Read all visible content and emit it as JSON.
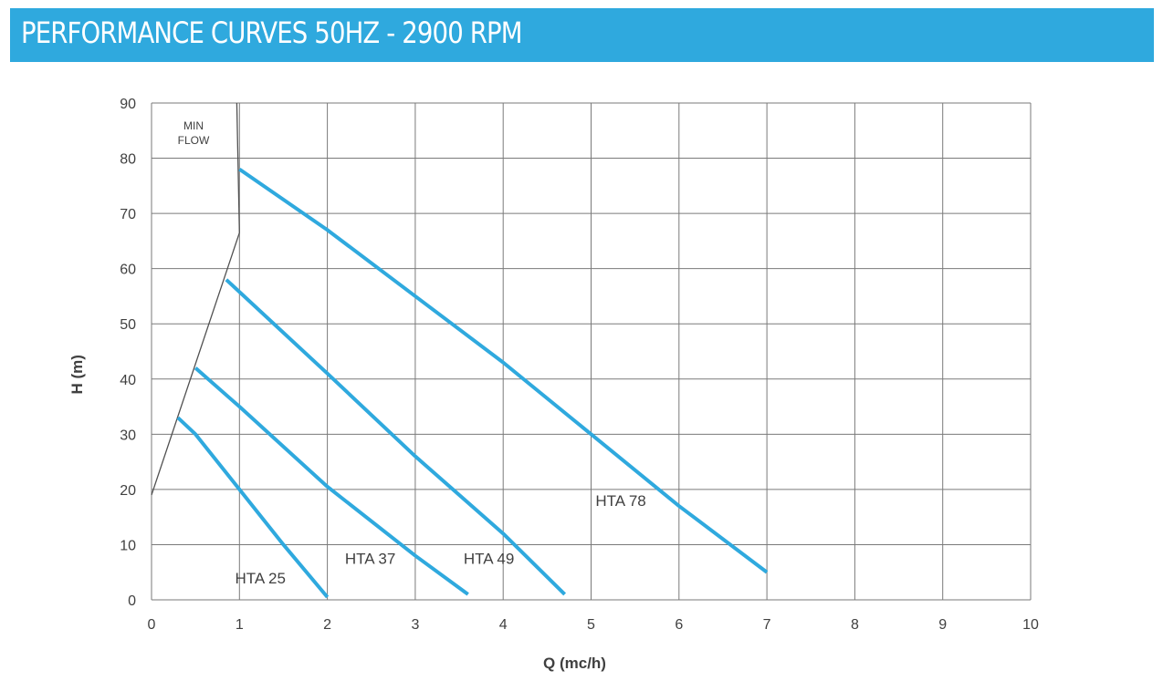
{
  "header": {
    "title": "PERFORMANCE CURVES 50HZ - 2900 RPM",
    "background": "#2fa9de"
  },
  "chart_data": {
    "type": "line",
    "title": "PERFORMANCE CURVES 50HZ - 2900 RPM",
    "xlabel": "Q (mc/h)",
    "ylabel": "H (m)",
    "xlim": [
      0,
      10
    ],
    "ylim": [
      0,
      90
    ],
    "x_ticks": [
      0,
      1,
      2,
      3,
      4,
      5,
      6,
      7,
      8,
      9,
      10
    ],
    "y_ticks": [
      0,
      10,
      20,
      30,
      40,
      50,
      60,
      70,
      80,
      90
    ],
    "grid": true,
    "legend": "none",
    "series_color": "#2fa9de",
    "series": [
      {
        "name": "HTA 25",
        "label_pos": [
          0.95,
          4
        ],
        "points": [
          [
            0.3,
            33
          ],
          [
            0.5,
            30
          ],
          [
            1.0,
            20
          ],
          [
            1.5,
            10
          ],
          [
            2.0,
            0.5
          ]
        ]
      },
      {
        "name": "HTA 37",
        "label_pos": [
          2.2,
          7.5
        ],
        "points": [
          [
            0.5,
            42
          ],
          [
            1.0,
            35
          ],
          [
            2.0,
            20.5
          ],
          [
            3.0,
            8
          ],
          [
            3.6,
            1
          ]
        ]
      },
      {
        "name": "HTA 49",
        "label_pos": [
          3.55,
          7.5
        ],
        "points": [
          [
            0.85,
            58
          ],
          [
            2.0,
            41
          ],
          [
            3.0,
            26
          ],
          [
            4.0,
            12
          ],
          [
            4.7,
            1
          ]
        ]
      },
      {
        "name": "HTA 78",
        "label_pos": [
          5.05,
          18
        ],
        "points": [
          [
            1.0,
            78
          ],
          [
            2.0,
            67
          ],
          [
            3.0,
            55
          ],
          [
            4.0,
            43
          ],
          [
            5.0,
            30
          ],
          [
            6.0,
            17
          ],
          [
            7.0,
            5
          ]
        ]
      }
    ],
    "annotations": [
      {
        "text_lines": [
          "MIN",
          "FLOW"
        ],
        "color": "#505050",
        "line": [
          [
            0,
            19
          ],
          [
            1.0,
            66.5
          ],
          [
            0.97,
            90
          ]
        ]
      }
    ]
  }
}
